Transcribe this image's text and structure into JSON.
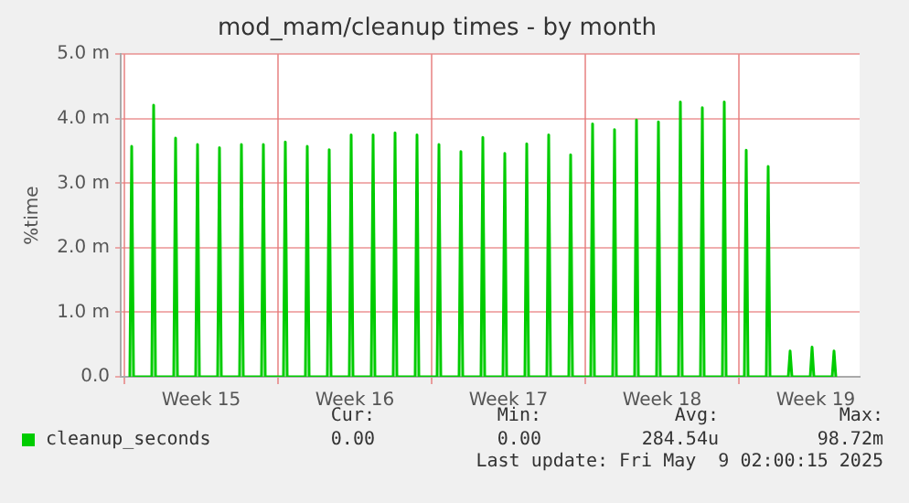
{
  "chart_data": {
    "type": "line",
    "title": "mod_mam/cleanup times - by month",
    "ylabel": "%time",
    "x": [
      "2025-04-07T06:00",
      "2025-04-07T08:00",
      "2025-04-07T10:00",
      "2025-04-08T06:00",
      "2025-04-08T08:00",
      "2025-04-08T10:00",
      "2025-04-09T06:00",
      "2025-04-09T08:00",
      "2025-04-09T10:00",
      "2025-04-10T06:00",
      "2025-04-10T08:00",
      "2025-04-10T10:00",
      "2025-04-11T06:00",
      "2025-04-11T08:00",
      "2025-04-11T10:00",
      "2025-04-12T06:00",
      "2025-04-12T08:00",
      "2025-04-12T10:00",
      "2025-04-13T06:00",
      "2025-04-13T08:00",
      "2025-04-13T10:00",
      "2025-04-14T06:00",
      "2025-04-14T08:00",
      "2025-04-14T10:00",
      "2025-04-15T06:00",
      "2025-04-15T08:00",
      "2025-04-15T10:00",
      "2025-04-16T06:00",
      "2025-04-16T08:00",
      "2025-04-16T10:00",
      "2025-04-17T06:00",
      "2025-04-17T08:00",
      "2025-04-17T10:00",
      "2025-04-18T06:00",
      "2025-04-18T08:00",
      "2025-04-18T10:00",
      "2025-04-19T06:00",
      "2025-04-19T08:00",
      "2025-04-19T10:00",
      "2025-04-20T06:00",
      "2025-04-20T08:00",
      "2025-04-20T10:00",
      "2025-04-21T06:00",
      "2025-04-21T08:00",
      "2025-04-21T10:00",
      "2025-04-22T06:00",
      "2025-04-22T08:00",
      "2025-04-22T10:00",
      "2025-04-23T06:00",
      "2025-04-23T08:00",
      "2025-04-23T10:00",
      "2025-04-24T06:00",
      "2025-04-24T08:00",
      "2025-04-24T10:00",
      "2025-04-25T06:00",
      "2025-04-25T08:00",
      "2025-04-25T10:00",
      "2025-04-26T06:00",
      "2025-04-26T08:00",
      "2025-04-26T10:00",
      "2025-04-27T06:00",
      "2025-04-27T08:00",
      "2025-04-27T10:00",
      "2025-04-28T06:00",
      "2025-04-28T08:00",
      "2025-04-28T10:00",
      "2025-04-29T06:00",
      "2025-04-29T08:00",
      "2025-04-29T10:00",
      "2025-04-30T06:00",
      "2025-04-30T08:00",
      "2025-04-30T10:00",
      "2025-05-01T06:00",
      "2025-05-01T08:00",
      "2025-05-01T10:00",
      "2025-05-02T06:00",
      "2025-05-02T08:00",
      "2025-05-02T10:00",
      "2025-05-03T06:00",
      "2025-05-03T08:00",
      "2025-05-03T10:00",
      "2025-05-04T06:00",
      "2025-05-04T08:00",
      "2025-05-04T10:00",
      "2025-05-05T06:00",
      "2025-05-05T08:00",
      "2025-05-05T10:00",
      "2025-05-06T06:00",
      "2025-05-06T08:00",
      "2025-05-06T10:00",
      "2025-05-07T06:00",
      "2025-05-07T08:00",
      "2025-05-07T10:00",
      "2025-05-08T06:00",
      "2025-05-08T08:00",
      "2025-05-08T10:00",
      "2025-05-09T06:00",
      "2025-05-09T08:00",
      "2025-05-09T10:00"
    ],
    "series": [
      {
        "name": "cleanup_seconds",
        "color": "#00cc00",
        "values": [
          0,
          3.57,
          0,
          0,
          4.21,
          0,
          0,
          3.7,
          0,
          0,
          3.6,
          0,
          0,
          3.55,
          0,
          0,
          3.6,
          0,
          0,
          3.6,
          0,
          0,
          3.64,
          0,
          0,
          3.57,
          0,
          0,
          3.52,
          0,
          0,
          3.75,
          0,
          0,
          3.75,
          0,
          0,
          3.78,
          0,
          0,
          3.75,
          0,
          0,
          3.6,
          0,
          0,
          3.49,
          0,
          0,
          3.71,
          0,
          0,
          3.46,
          0,
          0,
          3.61,
          0,
          0,
          3.75,
          0,
          0,
          3.44,
          0,
          0,
          3.92,
          0,
          0,
          3.83,
          0,
          0,
          3.98,
          0,
          0,
          3.95,
          0,
          0,
          4.26,
          0,
          0,
          4.17,
          0,
          0,
          4.26,
          0,
          0,
          3.51,
          0,
          0,
          3.26,
          0,
          0,
          0.4,
          0,
          0,
          0.46,
          0,
          0,
          0.4,
          0
        ]
      }
    ],
    "xlim": [
      "2025-04-06T20:00",
      "2025-05-10T12:00"
    ],
    "xticks": [
      {
        "value": "2025-04-07",
        "label": null
      },
      {
        "value": "2025-04-10T12:00",
        "label": "Week 15"
      },
      {
        "value": "2025-04-14",
        "label": null
      },
      {
        "value": "2025-04-17T12:00",
        "label": "Week 16"
      },
      {
        "value": "2025-04-21",
        "label": null
      },
      {
        "value": "2025-04-24T12:00",
        "label": "Week 17"
      },
      {
        "value": "2025-04-28",
        "label": null
      },
      {
        "value": "2025-05-01T12:00",
        "label": "Week 18"
      },
      {
        "value": "2025-05-05",
        "label": null
      },
      {
        "value": "2025-05-08T12:00",
        "label": "Week 19"
      }
    ],
    "ylim": [
      0,
      5
    ],
    "yticks": [
      {
        "value": 0,
        "label": "0.0"
      },
      {
        "value": 1,
        "label": "1.0 m"
      },
      {
        "value": 2,
        "label": "2.0 m"
      },
      {
        "value": 3,
        "label": "3.0 m"
      },
      {
        "value": 4,
        "label": "4.0 m"
      },
      {
        "value": 5,
        "label": "5.0 m"
      }
    ],
    "grid": true,
    "legend": "bottom left",
    "marker": "none",
    "line_style": "solid",
    "annotations": [
      "Cur:",
      "Min:",
      "Avg:",
      "Max:",
      "0.00",
      "0.00",
      "284.54u",
      "98.72m",
      "Last update: Fri May  9 02:00:15 2025"
    ]
  }
}
